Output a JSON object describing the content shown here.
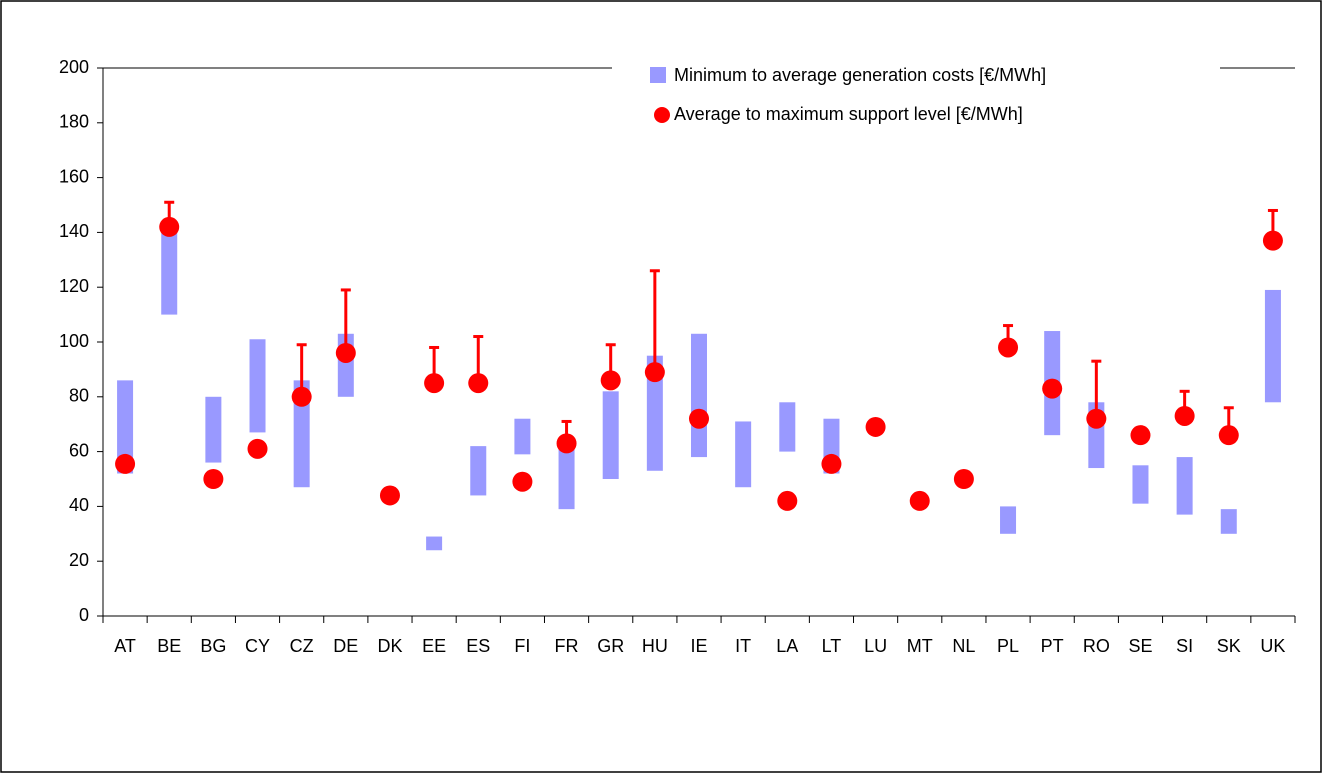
{
  "chart_data": {
    "type": "range",
    "categories": [
      "AT",
      "BE",
      "BG",
      "CY",
      "CZ",
      "DE",
      "DK",
      "EE",
      "ES",
      "FI",
      "FR",
      "GR",
      "HU",
      "IE",
      "IT",
      "LA",
      "LT",
      "LU",
      "MT",
      "NL",
      "PL",
      "PT",
      "RO",
      "SE",
      "SI",
      "SK",
      "UK"
    ],
    "series": [
      {
        "name": "Minimum to average generation costs [€/MWh]",
        "color": "#9999ff",
        "low": [
          52,
          110,
          56,
          67,
          47,
          80,
          null,
          24,
          44,
          59,
          39,
          50,
          53,
          58,
          47,
          60,
          52,
          null,
          null,
          null,
          30,
          66,
          54,
          41,
          37,
          30,
          78
        ],
        "high": [
          86,
          142,
          80,
          101,
          86,
          103,
          null,
          29,
          62,
          72,
          64,
          82,
          95,
          103,
          71,
          78,
          72,
          null,
          null,
          null,
          40,
          104,
          78,
          55,
          58,
          39,
          119
        ]
      },
      {
        "name": "Average to maximum support level [€/MWh]",
        "color": "#ff0000",
        "values": [
          55.5,
          142,
          50,
          61,
          80,
          96,
          44,
          85,
          85,
          49,
          63,
          86,
          89,
          72,
          null,
          42,
          55.5,
          69,
          42,
          50,
          98,
          83,
          72,
          66,
          73,
          66,
          137
        ],
        "max": [
          null,
          151,
          null,
          null,
          99,
          119,
          null,
          98,
          102,
          null,
          71,
          99,
          126,
          null,
          null,
          null,
          null,
          null,
          null,
          null,
          106,
          null,
          93,
          null,
          82,
          76,
          148
        ]
      }
    ],
    "ylim": [
      0,
      200
    ],
    "yticks": [
      0,
      20,
      40,
      60,
      80,
      100,
      120,
      140,
      160,
      180,
      200
    ]
  }
}
